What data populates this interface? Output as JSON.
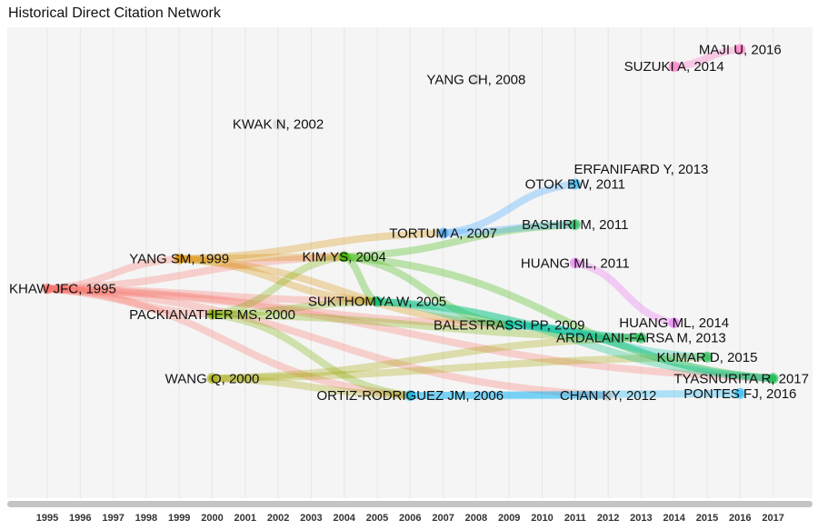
{
  "chart_data": {
    "type": "network",
    "title": "Historical Direct Citation Network",
    "xlabel": "",
    "ylabel": "",
    "years": [
      1995,
      1996,
      1997,
      1998,
      1999,
      2000,
      2001,
      2002,
      2003,
      2004,
      2005,
      2006,
      2007,
      2008,
      2009,
      2010,
      2011,
      2012,
      2013,
      2014,
      2015,
      2016,
      2017
    ],
    "nodes": [
      {
        "id": "khaw",
        "label": "KHAW JFC, 1995",
        "year": 1995,
        "row": 0.58,
        "color": "#f8766d"
      },
      {
        "id": "yangsm",
        "label": "YANG SM, 1999",
        "year": 1999,
        "row": 0.51,
        "color": "#d89000"
      },
      {
        "id": "packianather",
        "label": "PACKIANATHER MS, 2000",
        "year": 2000,
        "row": 0.64,
        "color": "#7cae00"
      },
      {
        "id": "wangq",
        "label": "WANG Q, 2000",
        "year": 2000,
        "row": 0.79,
        "color": "#a3a500"
      },
      {
        "id": "kwak",
        "label": "KWAK N, 2002",
        "year": 2002,
        "row": 0.195,
        "color": "#cccccc"
      },
      {
        "id": "kimys",
        "label": "KIM YS, 2004",
        "year": 2004,
        "row": 0.505,
        "color": "#39b600"
      },
      {
        "id": "sukthomya",
        "label": "SUKTHOMYA W, 2005",
        "year": 2005,
        "row": 0.61,
        "color": "#00bf7d"
      },
      {
        "id": "ortiz",
        "label": "ORTIZ-RODRIGUEZ JM, 2006",
        "year": 2006,
        "row": 0.83,
        "color": "#00b0f6"
      },
      {
        "id": "tortum",
        "label": "TORTUM A, 2007",
        "year": 2007,
        "row": 0.45,
        "color": "#35a2ff"
      },
      {
        "id": "yangch",
        "label": "YANG CH, 2008",
        "year": 2008,
        "row": 0.09,
        "color": "#cccccc"
      },
      {
        "id": "balestrassi",
        "label": "BALESTRASSI PP, 2009",
        "year": 2009,
        "row": 0.665,
        "color": "#00c1a3"
      },
      {
        "id": "otok",
        "label": "OTOK BW, 2011",
        "year": 2011,
        "row": 0.335,
        "color": "#00b0f6"
      },
      {
        "id": "bashiri",
        "label": "BASHIRI M, 2011",
        "year": 2011,
        "row": 0.43,
        "color": "#00ba38"
      },
      {
        "id": "huangml2011",
        "label": "HUANG ML, 2011",
        "year": 2011,
        "row": 0.52,
        "color": "#e76bf3"
      },
      {
        "id": "chanky",
        "label": "CHAN KY, 2012",
        "year": 2012,
        "row": 0.83,
        "color": "#cccccc"
      },
      {
        "id": "erfanifard",
        "label": "ERFANIFARD Y, 2013",
        "year": 2013,
        "row": 0.3,
        "color": "#cccccc"
      },
      {
        "id": "ardalani",
        "label": "ARDALANI-FARSA M, 2013",
        "year": 2013,
        "row": 0.695,
        "color": "#00ba38"
      },
      {
        "id": "suzuki",
        "label": "SUZUKI A, 2014",
        "year": 2014,
        "row": 0.06,
        "color": "#ff62bc"
      },
      {
        "id": "huangml2014",
        "label": "HUANG ML, 2014",
        "year": 2014,
        "row": 0.66,
        "color": "#e76bf3"
      },
      {
        "id": "kumar",
        "label": "KUMAR D, 2015",
        "year": 2015,
        "row": 0.74,
        "color": "#00ba38"
      },
      {
        "id": "majiu",
        "label": "MAJI U, 2016",
        "year": 2016,
        "row": 0.02,
        "color": "#ff62bc"
      },
      {
        "id": "pontes",
        "label": "PONTES FJ, 2016",
        "year": 2016,
        "row": 0.825,
        "color": "#00b0f6"
      },
      {
        "id": "tyasnurita",
        "label": "TYASNURITA R, 2017",
        "year": 2017,
        "row": 0.79,
        "color": "#00ba38"
      }
    ],
    "edges": [
      [
        "khaw",
        "yangsm"
      ],
      [
        "khaw",
        "packianather"
      ],
      [
        "khaw",
        "kimys"
      ],
      [
        "khaw",
        "sukthomya"
      ],
      [
        "khaw",
        "ortiz"
      ],
      [
        "khaw",
        "balestrassi"
      ],
      [
        "khaw",
        "chanky"
      ],
      [
        "khaw",
        "tyasnurita"
      ],
      [
        "yangsm",
        "kimys"
      ],
      [
        "yangsm",
        "tortum"
      ],
      [
        "yangsm",
        "sukthomya"
      ],
      [
        "yangsm",
        "balestrassi"
      ],
      [
        "packianather",
        "kimys"
      ],
      [
        "packianather",
        "sukthomya"
      ],
      [
        "packianather",
        "ortiz"
      ],
      [
        "packianather",
        "ardalani"
      ],
      [
        "wangq",
        "ortiz"
      ],
      [
        "wangq",
        "ardalani"
      ],
      [
        "wangq",
        "kumar"
      ],
      [
        "kimys",
        "sukthomya"
      ],
      [
        "kimys",
        "balestrassi"
      ],
      [
        "kimys",
        "bashiri"
      ],
      [
        "kimys",
        "tyasnurita"
      ],
      [
        "sukthomya",
        "balestrassi"
      ],
      [
        "sukthomya",
        "ardalani"
      ],
      [
        "sukthomya",
        "tyasnurita"
      ],
      [
        "ortiz",
        "pontes"
      ],
      [
        "ortiz",
        "chanky"
      ],
      [
        "tortum",
        "otok"
      ],
      [
        "tortum",
        "bashiri"
      ],
      [
        "balestrassi",
        "ardalani"
      ],
      [
        "balestrassi",
        "kumar"
      ],
      [
        "balestrassi",
        "tyasnurita"
      ],
      [
        "huangml2011",
        "huangml2014"
      ],
      [
        "suzuki",
        "majiu"
      ]
    ]
  }
}
